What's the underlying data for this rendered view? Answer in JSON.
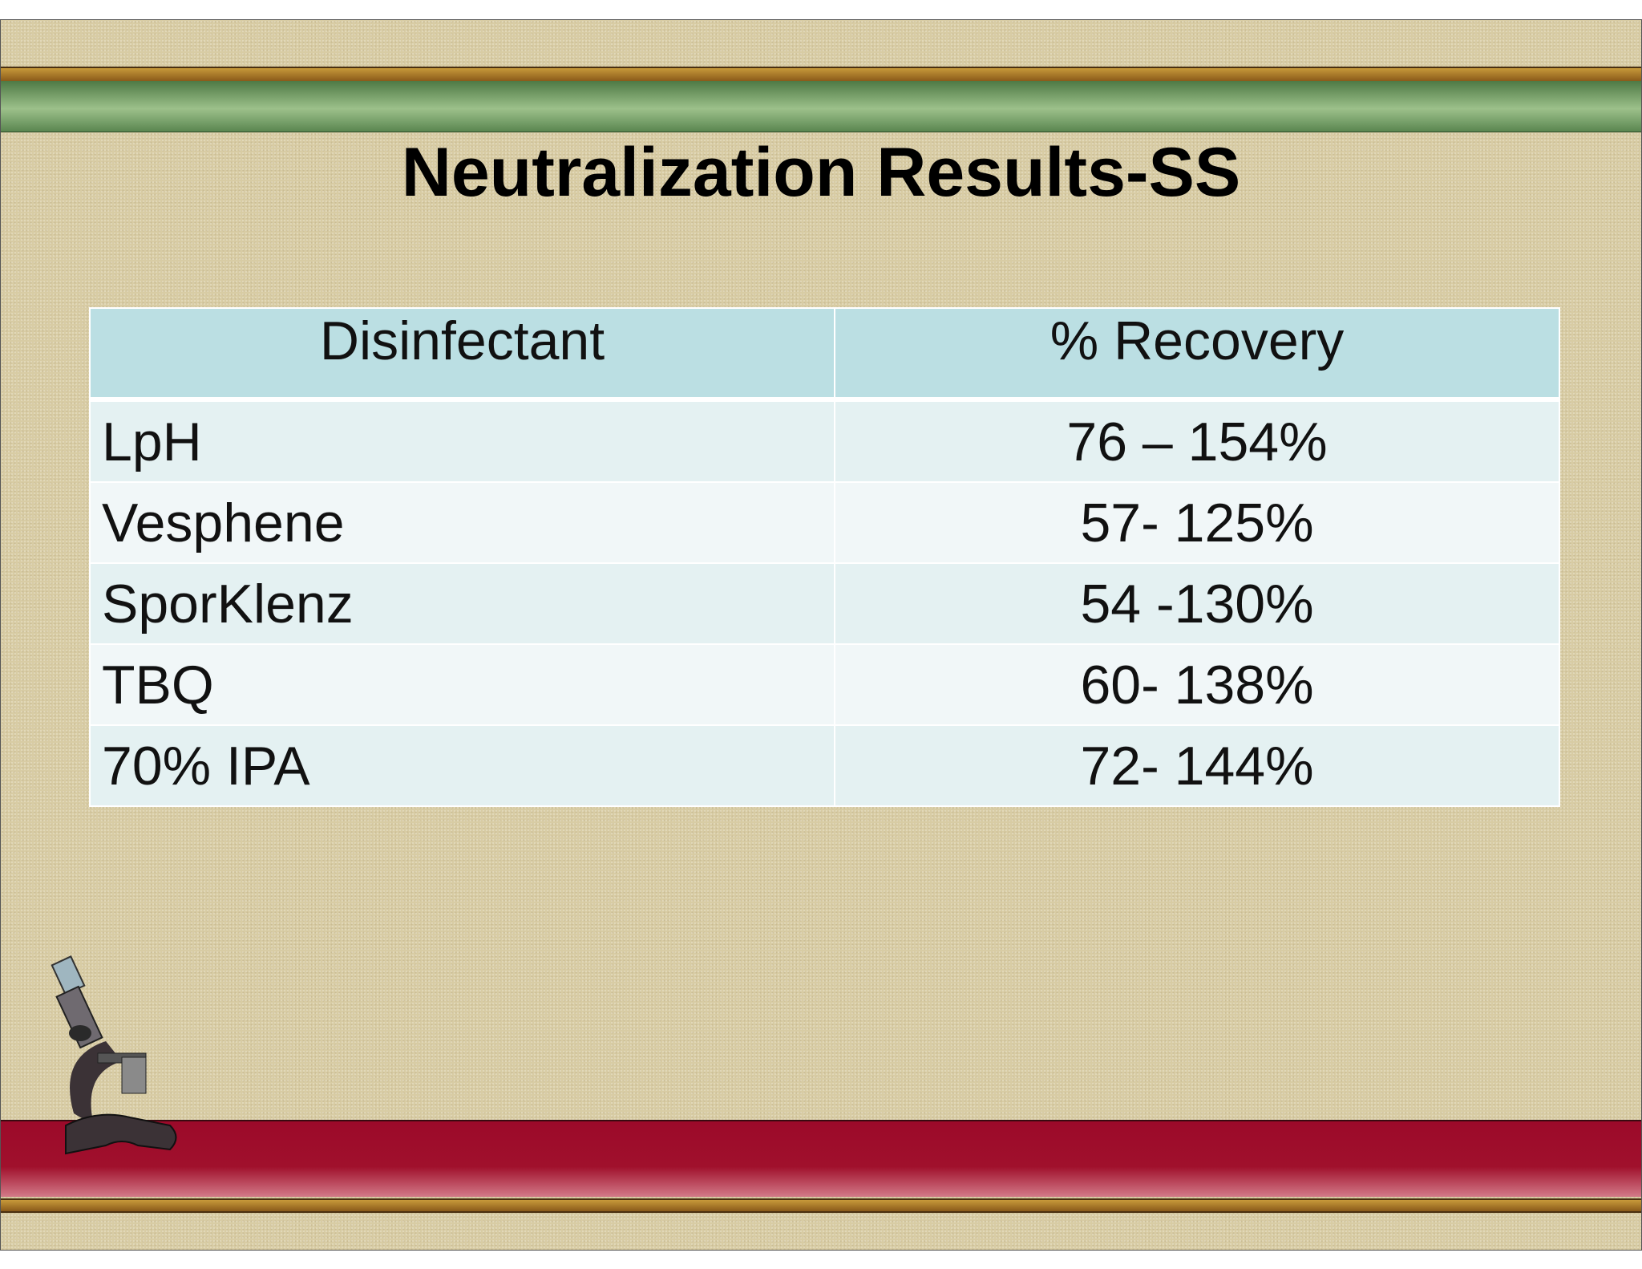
{
  "header": {
    "title": "Neutralization Results-SS"
  },
  "table": {
    "columns": [
      "Disinfectant",
      "% Recovery"
    ],
    "rows": [
      [
        "LpH",
        "76 – 154%"
      ],
      [
        "Vesphene",
        "57- 125%"
      ],
      [
        "SporKlenz",
        "54 -130%"
      ],
      [
        "TBQ",
        "60- 138%"
      ],
      [
        "70% IPA",
        "72- 144%"
      ]
    ]
  }
}
